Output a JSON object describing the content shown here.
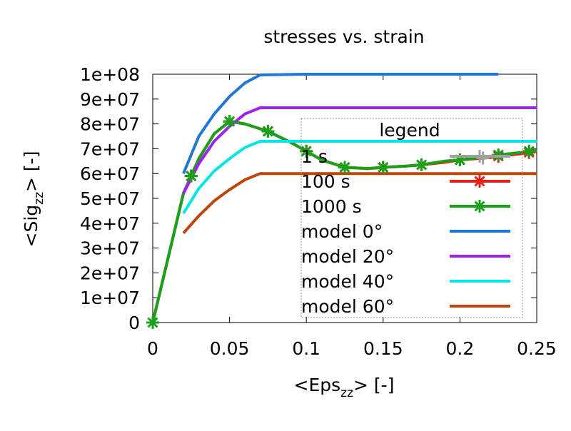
{
  "chart_data": {
    "type": "line",
    "title": "stresses vs. strain",
    "xlabel": {
      "main": "<Eps",
      "sub": "zz",
      "tail": "> [-]"
    },
    "ylabel": {
      "main": "<Sig",
      "sub": "zz",
      "tail": "> [-]"
    },
    "xlim": [
      0,
      0.25
    ],
    "ylim": [
      0,
      100000000
    ],
    "x_ticks": [
      {
        "value": 0,
        "label": "0"
      },
      {
        "value": 0.05,
        "label": "0.05"
      },
      {
        "value": 0.1,
        "label": "0.1"
      },
      {
        "value": 0.15,
        "label": "0.15"
      },
      {
        "value": 0.2,
        "label": "0.2"
      },
      {
        "value": 0.25,
        "label": "0.25"
      }
    ],
    "y_ticks": [
      {
        "value": 0,
        "label": "0"
      },
      {
        "value": 10000000,
        "label": "1e+07"
      },
      {
        "value": 20000000,
        "label": "2e+07"
      },
      {
        "value": 30000000,
        "label": "3e+07"
      },
      {
        "value": 40000000,
        "label": "4e+07"
      },
      {
        "value": 50000000,
        "label": "5e+07"
      },
      {
        "value": 60000000,
        "label": "6e+07"
      },
      {
        "value": 70000000,
        "label": "7e+07"
      },
      {
        "value": 80000000,
        "label": "8e+07"
      },
      {
        "value": 90000000,
        "label": "9e+07"
      },
      {
        "value": 100000000,
        "label": "1e+08"
      }
    ],
    "grid": false,
    "legend": {
      "title": "legend",
      "position": "center-right"
    },
    "series": [
      {
        "name": "1 s",
        "color": "#a0a0a0",
        "marker": "plus",
        "x": [
          0,
          0.02,
          0.03,
          0.04,
          0.05,
          0.06,
          0.075,
          0.09,
          0.1,
          0.11,
          0.125,
          0.14,
          0.15,
          0.165,
          0.175,
          0.19,
          0.2,
          0.22,
          0.225,
          0.24,
          0.25
        ],
        "y": [
          0,
          52000000,
          66000000,
          76000000,
          81000000,
          80000000,
          77000000,
          72500000,
          69000000,
          65500000,
          62500000,
          62000000,
          62500000,
          63000000,
          63500000,
          65000000,
          65500000,
          66500000,
          67000000,
          68000000,
          69000000
        ],
        "marker_x": [
          0.025,
          0.05,
          0.075,
          0.1,
          0.125,
          0.15,
          0.175,
          0.2,
          0.215,
          0.225,
          0.245
        ]
      },
      {
        "name": "100 s",
        "color": "#e8201c",
        "marker": "star",
        "x": [
          0,
          0.02,
          0.03,
          0.04,
          0.05,
          0.06,
          0.075,
          0.09,
          0.1,
          0.11,
          0.125,
          0.14,
          0.15,
          0.165,
          0.175,
          0.19,
          0.2,
          0.22,
          0.225,
          0.24,
          0.25
        ],
        "y": [
          0,
          52000000,
          66000000,
          76000000,
          81000000,
          80000000,
          77000000,
          72500000,
          69000000,
          65500000,
          62500000,
          62000000,
          62500000,
          63000000,
          63500000,
          64500000,
          65500000,
          66500000,
          67000000,
          68000000,
          69000000
        ],
        "marker_x": [
          0.025,
          0.05,
          0.075,
          0.1,
          0.125,
          0.15,
          0.175,
          0.2,
          0.225,
          0.245
        ]
      },
      {
        "name": "1000 s",
        "color": "#1aa11a",
        "marker": "star",
        "x": [
          0,
          0.02,
          0.03,
          0.04,
          0.05,
          0.06,
          0.075,
          0.09,
          0.1,
          0.11,
          0.125,
          0.14,
          0.15,
          0.165,
          0.175,
          0.19,
          0.2,
          0.22,
          0.225,
          0.24,
          0.25
        ],
        "y": [
          0,
          52000000,
          66000000,
          76000000,
          81000000,
          80000000,
          77000000,
          72500000,
          69000000,
          65500000,
          62500000,
          62000000,
          62500000,
          63000000,
          63500000,
          65000000,
          65500000,
          67000000,
          67500000,
          68500000,
          69500000
        ],
        "marker_x": [
          0,
          0.025,
          0.05,
          0.075,
          0.1,
          0.125,
          0.15,
          0.175,
          0.2,
          0.225,
          0.245
        ]
      },
      {
        "name": "model 0°",
        "color": "#1f77d8",
        "marker": "none",
        "x": [
          0.02,
          0.03,
          0.04,
          0.05,
          0.06,
          0.07,
          0.1,
          0.15,
          0.225
        ],
        "y": [
          60000000,
          75000000,
          84000000,
          91000000,
          96500000,
          99700000,
          100000000,
          100000000,
          100000000
        ]
      },
      {
        "name": "model 20°",
        "color": "#a020f0",
        "marker": "none",
        "x": [
          0.02,
          0.03,
          0.04,
          0.05,
          0.06,
          0.07,
          0.1,
          0.15,
          0.25
        ],
        "y": [
          52000000,
          64000000,
          73000000,
          79000000,
          84000000,
          86500000,
          86500000,
          86500000,
          86500000
        ]
      },
      {
        "name": "model 40°",
        "color": "#00e5e5",
        "marker": "none",
        "x": [
          0.02,
          0.03,
          0.04,
          0.05,
          0.06,
          0.07,
          0.1,
          0.15,
          0.25
        ],
        "y": [
          44000000,
          54000000,
          61000000,
          66000000,
          70500000,
          73000000,
          73000000,
          73000000,
          73000000
        ]
      },
      {
        "name": "model 60°",
        "color": "#c0440a",
        "marker": "none",
        "x": [
          0.02,
          0.03,
          0.04,
          0.05,
          0.06,
          0.07,
          0.1,
          0.15,
          0.25
        ],
        "y": [
          36000000,
          43000000,
          49000000,
          53500000,
          57500000,
          60000000,
          60000000,
          60000000,
          60000000
        ]
      }
    ]
  }
}
